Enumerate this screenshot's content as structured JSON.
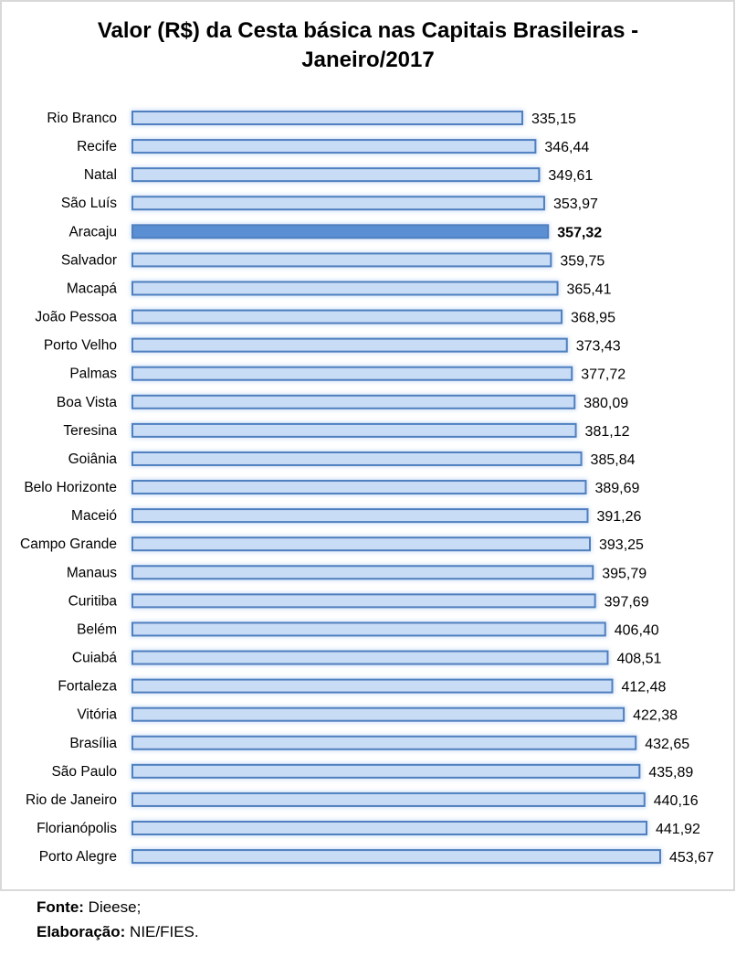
{
  "chart_data": {
    "type": "bar",
    "orientation": "horizontal",
    "title_lines": [
      "Valor (R$) da Cesta básica nas Capitais Brasileiras -",
      "Janeiro/2017"
    ],
    "xlabel": "",
    "ylabel": "",
    "xlim": [
      0,
      480
    ],
    "grid": false,
    "highlight": "Aracaju",
    "colors": {
      "bar_fill": "#c9dcf5",
      "bar_stroke": "#4f7fbf",
      "highlight_fill": "#5a8fd3",
      "glow": "#cfe0f7"
    },
    "categories": [
      "Rio Branco",
      "Recife",
      "Natal",
      "São Luís",
      "Aracaju",
      "Salvador",
      "Macapá",
      "João Pessoa",
      "Porto Velho",
      "Palmas",
      "Boa Vista",
      "Teresina",
      "Goiânia",
      "Belo Horizonte",
      "Maceió",
      "Campo Grande",
      "Manaus",
      "Curitiba",
      "Belém",
      "Cuiabá",
      "Fortaleza",
      "Vitória",
      "Brasília",
      "São Paulo",
      "Rio de Janeiro",
      "Florianópolis",
      "Porto Alegre"
    ],
    "values": [
      335.15,
      346.44,
      349.61,
      353.97,
      357.32,
      359.75,
      365.41,
      368.95,
      373.43,
      377.72,
      380.09,
      381.12,
      385.84,
      389.69,
      391.26,
      393.25,
      395.79,
      397.69,
      406.4,
      408.51,
      412.48,
      422.38,
      432.65,
      435.89,
      440.16,
      441.92,
      453.67
    ],
    "labels": [
      "335,15",
      "346,44",
      "349,61",
      "353,97",
      "357,32",
      "359,75",
      "365,41",
      "368,95",
      "373,43",
      "377,72",
      "380,09",
      "381,12",
      "385,84",
      "389,69",
      "391,26",
      "393,25",
      "395,79",
      "397,69",
      "406,40",
      "408,51",
      "412,48",
      "422,38",
      "432,65",
      "435,89",
      "440,16",
      "441,92",
      "453,67"
    ]
  },
  "source": {
    "fonte_label": "Fonte:",
    "fonte_value": " Dieese;",
    "elab_label": "Elaboração:",
    "elab_value": " NIE/FIES."
  }
}
